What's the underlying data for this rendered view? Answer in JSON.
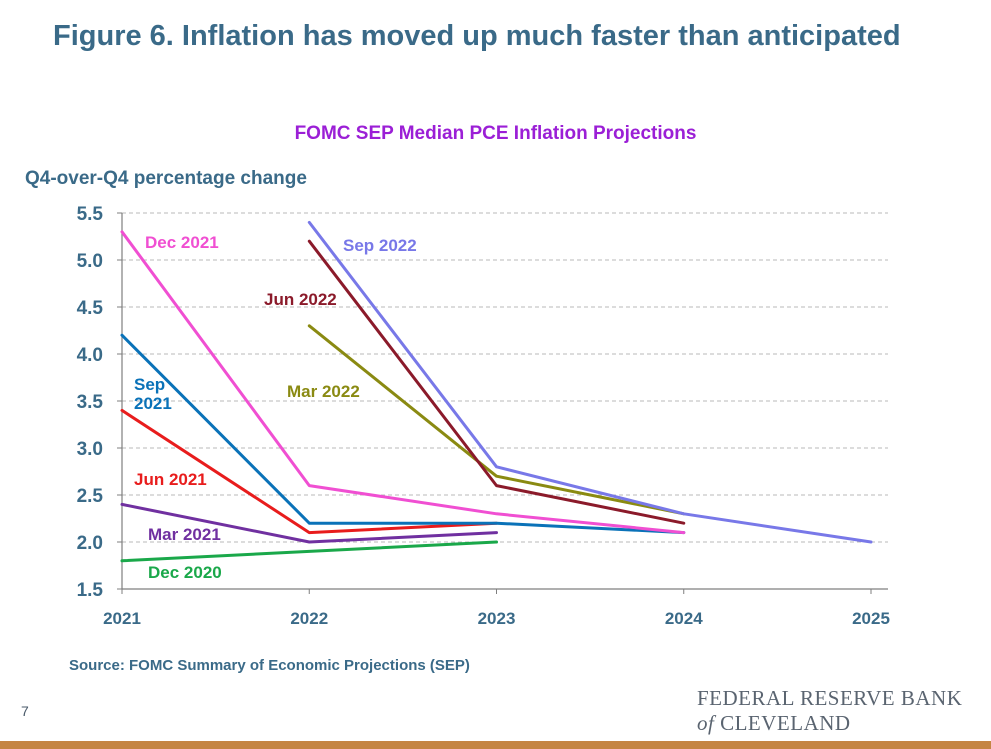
{
  "header": {
    "title": "Figure 6. Inflation has moved up much faster than anticipated"
  },
  "footer": {
    "source": "Source: FOMC Summary of Economic Projections (SEP)",
    "page_number": "7",
    "logo_line1": "FEDERAL RESERVE BANK",
    "logo_of": "of",
    "logo_line2": "CLEVELAND",
    "bar_color": "#c58543"
  },
  "chart_data": {
    "type": "line",
    "title": "FOMC SEP Median PCE Inflation Projections",
    "ylabel": "Q4-over-Q4 percentage change",
    "xlabel": "",
    "x_ticks": [
      2021,
      2022,
      2023,
      2024,
      2025
    ],
    "y_ticks": [
      "1.5",
      "2.0",
      "2.5",
      "3.0",
      "3.5",
      "4.0",
      "4.5",
      "5.0",
      "5.5"
    ],
    "xlim": [
      2021,
      2025
    ],
    "ylim": [
      1.5,
      5.5
    ],
    "grid": "horizontal dashed",
    "series": [
      {
        "name": "Dec 2020",
        "color": "#1aa84a",
        "x": [
          2021,
          2022,
          2023
        ],
        "values": [
          1.8,
          1.9,
          2.0
        ]
      },
      {
        "name": "Mar 2021",
        "color": "#7030a0",
        "x": [
          2021,
          2022,
          2023
        ],
        "values": [
          2.4,
          2.0,
          2.1
        ]
      },
      {
        "name": "Jun 2021",
        "color": "#e81c1c",
        "x": [
          2021,
          2022,
          2023
        ],
        "values": [
          3.4,
          2.1,
          2.2
        ]
      },
      {
        "name": "Sep 2021",
        "color": "#0a72b8",
        "x": [
          2021,
          2022,
          2023,
          2024
        ],
        "values": [
          4.2,
          2.2,
          2.2,
          2.1
        ]
      },
      {
        "name": "Dec 2021",
        "color": "#f04fd2",
        "x": [
          2021,
          2022,
          2023,
          2024
        ],
        "values": [
          5.3,
          2.6,
          2.3,
          2.1
        ]
      },
      {
        "name": "Mar 2022",
        "color": "#8a8a12",
        "x": [
          2022,
          2023,
          2024
        ],
        "values": [
          4.3,
          2.7,
          2.3
        ]
      },
      {
        "name": "Jun 2022",
        "color": "#8b1a2a",
        "x": [
          2022,
          2023,
          2024
        ],
        "values": [
          5.2,
          2.6,
          2.2
        ]
      },
      {
        "name": "Sep 2022",
        "color": "#7878e8",
        "x": [
          2022,
          2023,
          2024,
          2025
        ],
        "values": [
          5.4,
          2.8,
          2.3,
          2.0
        ]
      }
    ],
    "labels": [
      {
        "series": "Dec 2021",
        "lines": [
          "Dec 2021"
        ]
      },
      {
        "series": "Sep 2022",
        "lines": [
          "Sep 2022"
        ]
      },
      {
        "series": "Jun 2022",
        "lines": [
          "Jun 2022"
        ]
      },
      {
        "series": "Mar 2022",
        "lines": [
          "Mar 2022"
        ]
      },
      {
        "series": "Sep 2021",
        "lines": [
          "Sep",
          "2021"
        ]
      },
      {
        "series": "Jun 2021",
        "lines": [
          "Jun 2021"
        ]
      },
      {
        "series": "Mar 2021",
        "lines": [
          "Mar 2021"
        ]
      },
      {
        "series": "Dec 2020",
        "lines": [
          "Dec 2020"
        ]
      }
    ]
  }
}
